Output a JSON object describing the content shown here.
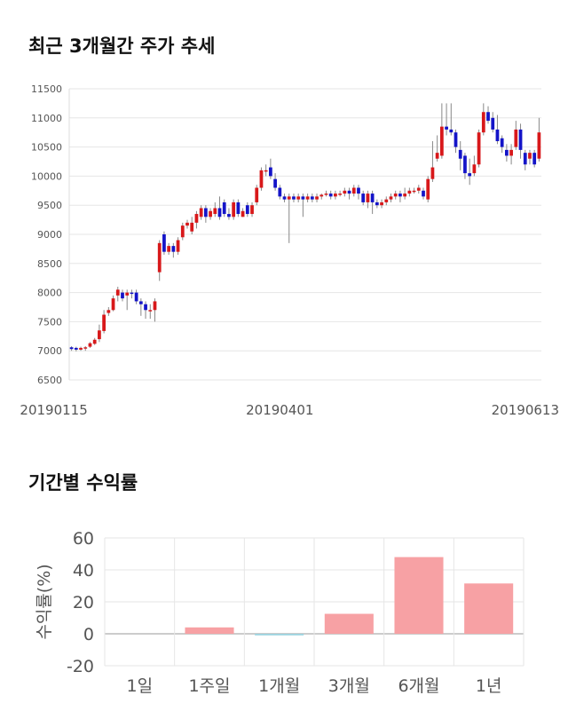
{
  "sections": {
    "price_title": "최근 3개월간 주가 추세",
    "return_title": "기간별 수익률"
  },
  "colors": {
    "up": "#d8181a",
    "down": "#1414c8",
    "bar_pos": "#f7a1a4",
    "bar_neg": "#9cd3e0",
    "grid": "#e6e6e6"
  },
  "chart_data": [
    {
      "type": "candlestick",
      "title": "최근 3개월간 주가 추세",
      "ylim": [
        6500,
        11500
      ],
      "yticks": [
        6500,
        7000,
        7500,
        8000,
        8500,
        9000,
        9500,
        10000,
        10500,
        11000,
        11500
      ],
      "xtick_labels": [
        "20190115",
        "20190401",
        "20190613"
      ],
      "grid": true,
      "candles": [
        [
          7060,
          7030,
          7080,
          7000
        ],
        [
          7050,
          7020,
          7070,
          6990
        ],
        [
          7020,
          7050,
          7070,
          7000
        ],
        [
          7040,
          7060,
          7080,
          7000
        ],
        [
          7070,
          7130,
          7150,
          7050
        ],
        [
          7120,
          7190,
          7220,
          7100
        ],
        [
          7200,
          7350,
          7450,
          7150
        ],
        [
          7340,
          7620,
          7700,
          7300
        ],
        [
          7650,
          7700,
          7750,
          7600
        ],
        [
          7700,
          7900,
          7950,
          7680
        ],
        [
          7950,
          8050,
          8100,
          7850
        ],
        [
          8000,
          7900,
          8050,
          7850
        ],
        [
          7950,
          8000,
          8050,
          7700
        ],
        [
          8000,
          7980,
          8050,
          7900
        ],
        [
          8000,
          7850,
          8050,
          7800
        ],
        [
          7850,
          7800,
          7900,
          7600
        ],
        [
          7800,
          7700,
          7850,
          7550
        ],
        [
          7700,
          7700,
          7800,
          7550
        ],
        [
          7700,
          7850,
          7900,
          7500
        ],
        [
          8350,
          8850,
          8900,
          8200
        ],
        [
          9000,
          8700,
          9050,
          8650
        ],
        [
          8700,
          8800,
          8850,
          8650
        ],
        [
          8800,
          8700,
          8850,
          8600
        ],
        [
          8700,
          8900,
          8950,
          8650
        ],
        [
          8950,
          9150,
          9200,
          8900
        ],
        [
          9150,
          9200,
          9250,
          9100
        ],
        [
          9050,
          9200,
          9300,
          9000
        ],
        [
          9200,
          9350,
          9400,
          9100
        ],
        [
          9300,
          9450,
          9500,
          9250
        ],
        [
          9450,
          9300,
          9500,
          9200
        ],
        [
          9300,
          9400,
          9450,
          9250
        ],
        [
          9350,
          9450,
          9550,
          9300
        ],
        [
          9450,
          9300,
          9650,
          9250
        ],
        [
          9550,
          9350,
          9600,
          9300
        ],
        [
          9350,
          9300,
          9450,
          9250
        ],
        [
          9300,
          9550,
          9600,
          9250
        ],
        [
          9550,
          9350,
          9600,
          9300
        ],
        [
          9300,
          9400,
          9450,
          9300
        ],
        [
          9500,
          9350,
          9550,
          9300
        ],
        [
          9350,
          9500,
          9550,
          9300
        ],
        [
          9550,
          9800,
          9850,
          9500
        ],
        [
          9800,
          10100,
          10150,
          9750
        ],
        [
          10100,
          10100,
          10200,
          10000
        ],
        [
          10150,
          10000,
          10300,
          9950
        ],
        [
          9950,
          9800,
          10050,
          9750
        ],
        [
          9800,
          9650,
          9850,
          9600
        ],
        [
          9650,
          9600,
          9700,
          9550
        ],
        [
          9600,
          9650,
          9700,
          8850
        ],
        [
          9650,
          9600,
          9700,
          9550
        ],
        [
          9600,
          9650,
          9700,
          9550
        ],
        [
          9650,
          9600,
          9700,
          9300
        ],
        [
          9600,
          9650,
          9700,
          9550
        ],
        [
          9650,
          9600,
          9700,
          9550
        ],
        [
          9600,
          9650,
          9700,
          9550
        ],
        [
          9650,
          9680,
          9700,
          9600
        ],
        [
          9680,
          9700,
          9750,
          9650
        ],
        [
          9700,
          9650,
          9750,
          9600
        ],
        [
          9650,
          9700,
          9750,
          9600
        ],
        [
          9700,
          9700,
          9750,
          9650
        ],
        [
          9700,
          9750,
          9800,
          9650
        ],
        [
          9750,
          9700,
          9800,
          9600
        ],
        [
          9700,
          9800,
          9850,
          9650
        ],
        [
          9800,
          9700,
          9850,
          9600
        ],
        [
          9700,
          9550,
          9750,
          9500
        ],
        [
          9550,
          9700,
          9750,
          9450
        ],
        [
          9700,
          9550,
          9750,
          9350
        ],
        [
          9550,
          9500,
          9600,
          9450
        ],
        [
          9500,
          9550,
          9600,
          9450
        ],
        [
          9550,
          9600,
          9650,
          9500
        ],
        [
          9600,
          9650,
          9700,
          9550
        ],
        [
          9650,
          9700,
          9750,
          9600
        ],
        [
          9700,
          9650,
          9750,
          9550
        ],
        [
          9650,
          9700,
          9800,
          9600
        ],
        [
          9700,
          9750,
          9800,
          9650
        ],
        [
          9750,
          9750,
          9800,
          9700
        ],
        [
          9750,
          9800,
          9850,
          9700
        ],
        [
          9750,
          9650,
          9800,
          9600
        ],
        [
          9600,
          9950,
          10000,
          9550
        ],
        [
          9950,
          10150,
          10600,
          9900
        ],
        [
          10300,
          10400,
          10700,
          10250
        ],
        [
          10350,
          10850,
          11250,
          10300
        ],
        [
          10850,
          10800,
          11250,
          10700
        ],
        [
          10800,
          10750,
          11250,
          10700
        ],
        [
          10750,
          10500,
          10800,
          10400
        ],
        [
          10450,
          10300,
          10600,
          10100
        ],
        [
          10350,
          10050,
          10400,
          9950
        ],
        [
          10050,
          10000,
          10300,
          9850
        ],
        [
          10050,
          10200,
          10350,
          10000
        ],
        [
          10200,
          10750,
          10800,
          10150
        ],
        [
          10750,
          11100,
          11250,
          10700
        ],
        [
          11100,
          10950,
          11200,
          10900
        ],
        [
          11000,
          10800,
          11100,
          10750
        ],
        [
          10800,
          10600,
          11050,
          10550
        ],
        [
          10650,
          10500,
          10700,
          10400
        ],
        [
          10450,
          10350,
          10550,
          10250
        ],
        [
          10350,
          10450,
          10550,
          10200
        ],
        [
          10500,
          10800,
          10950,
          10450
        ],
        [
          10800,
          10450,
          10900,
          10300
        ],
        [
          10400,
          10200,
          10450,
          10100
        ],
        [
          10300,
          10400,
          10450,
          10200
        ],
        [
          10400,
          10200,
          10450,
          10150
        ],
        [
          10300,
          10750,
          11000,
          10250
        ]
      ]
    },
    {
      "type": "bar",
      "categories": [
        "1일",
        "1주일",
        "1개월",
        "3개월",
        "6개월",
        "1년"
      ],
      "values": [
        0,
        4,
        -1,
        12.5,
        48,
        31.5
      ],
      "ylabel": "수익률(%)",
      "ylim": [
        -20,
        60
      ],
      "yticks": [
        -20,
        0,
        20,
        40,
        60
      ],
      "grid": true
    }
  ]
}
